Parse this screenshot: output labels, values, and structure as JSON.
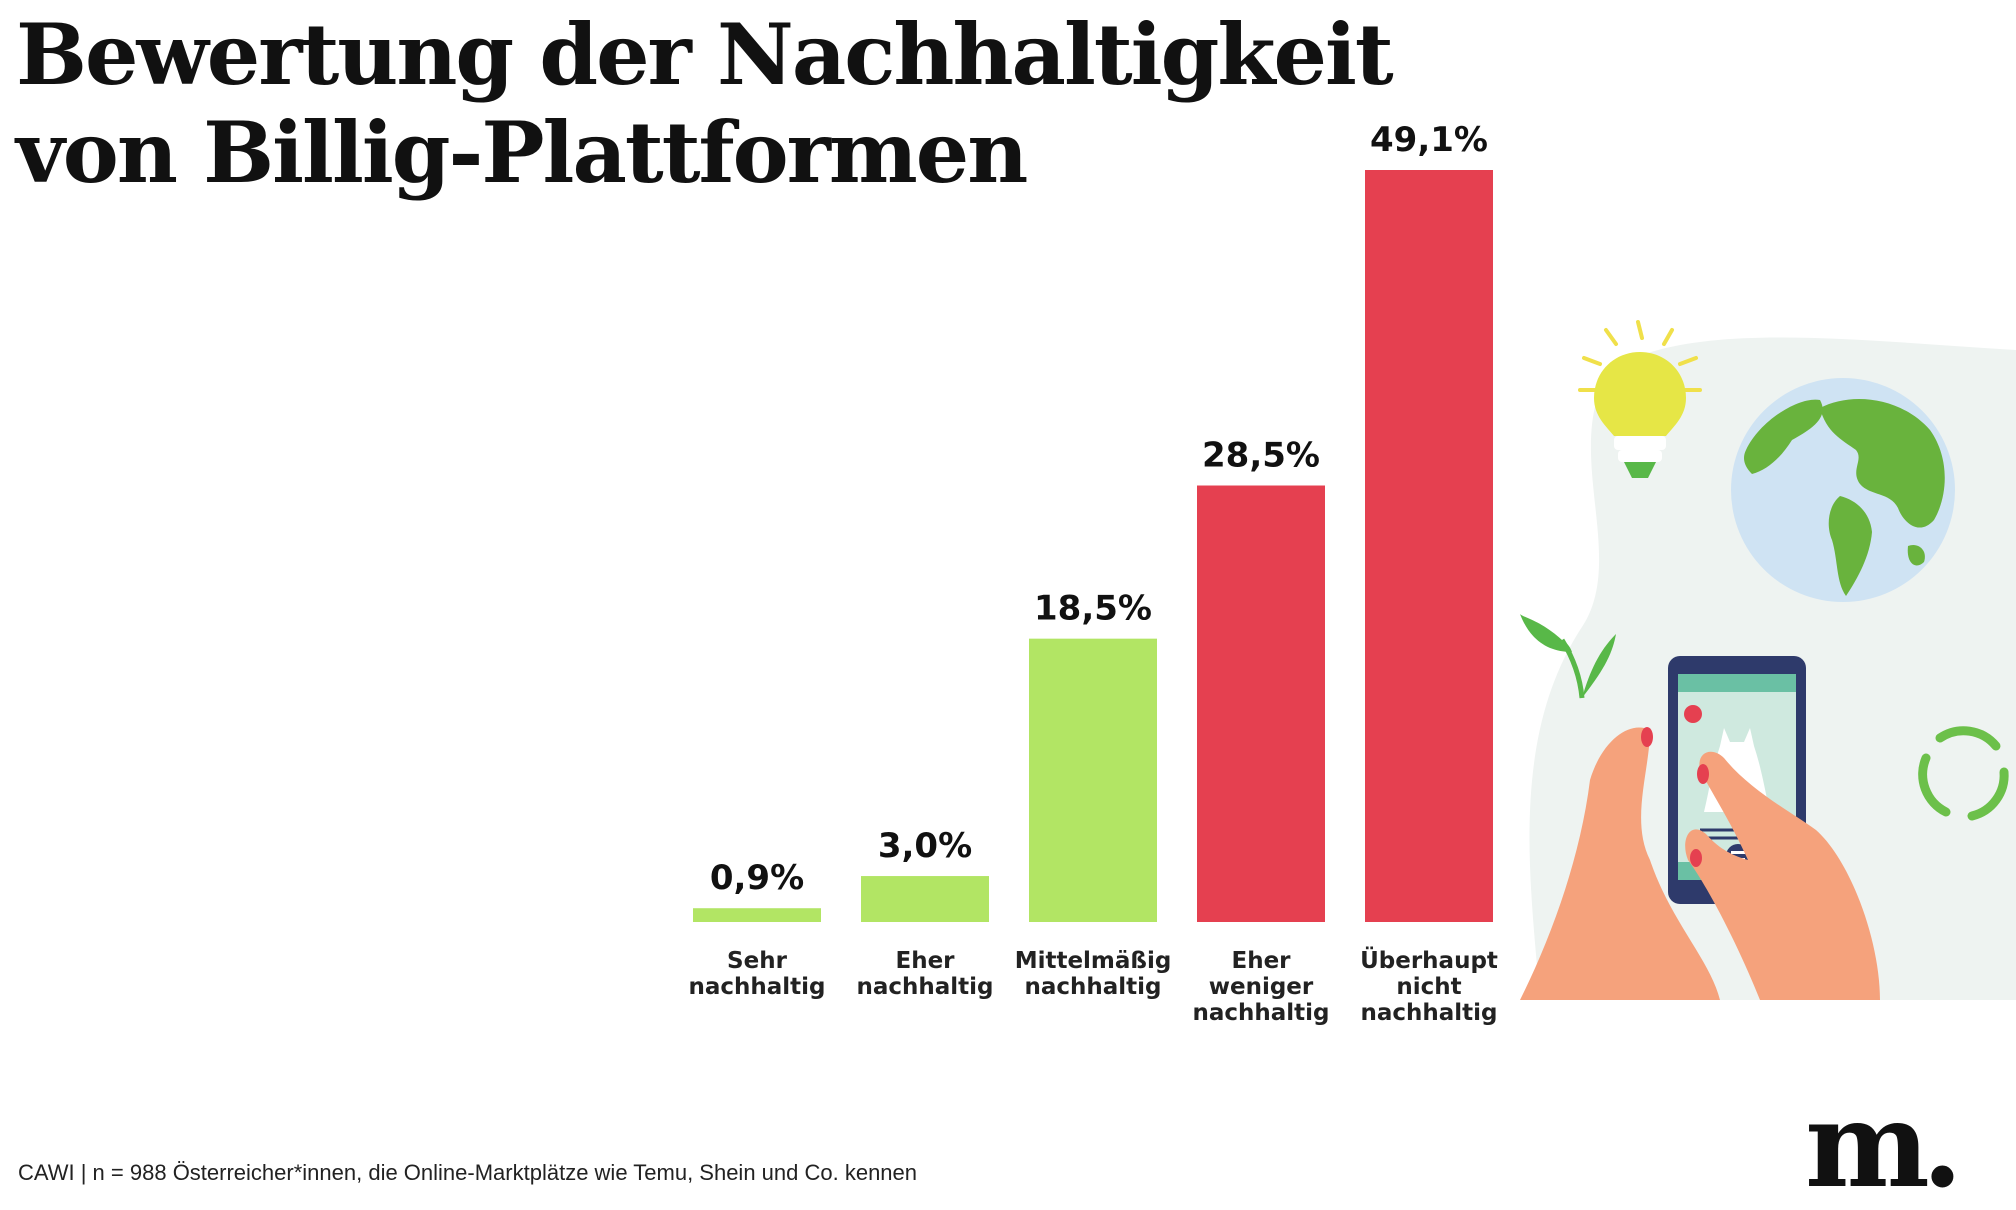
{
  "title": {
    "line1": "Bewertung der Nachhaltigkeit",
    "line2": "von Billig-Plattformen"
  },
  "footnote": "CAWI | n = 988 Österreicher*innen, die Online-Marktplätze wie Temu, Shein und Co. kennen",
  "brand": "m.",
  "colors": {
    "positive": "#B2E564",
    "negative": "#E54050"
  },
  "icons": [
    "lightbulb-icon",
    "globe-icon",
    "leaf-icon",
    "smartphone-icon",
    "recycle-icon",
    "hand-icon",
    "dress-icon"
  ],
  "chart_data": {
    "type": "bar",
    "categories": [
      [
        "Sehr",
        "nachhaltig"
      ],
      [
        "Eher",
        "nachhaltig"
      ],
      [
        "Mittelmäßig",
        "nachhaltig"
      ],
      [
        "Eher",
        "weniger",
        "nachhaltig"
      ],
      [
        "Überhaupt",
        "nicht",
        "nachhaltig"
      ]
    ],
    "values": [
      0.9,
      3.0,
      18.5,
      28.5,
      49.1
    ],
    "value_labels": [
      "0,9%",
      "3,0%",
      "18,5%",
      "28,5%",
      "49,1%"
    ],
    "bar_colors": [
      "#B2E564",
      "#B2E564",
      "#B2E564",
      "#E54050",
      "#E54050"
    ],
    "unit": "%",
    "grid": false,
    "legend": "none"
  }
}
